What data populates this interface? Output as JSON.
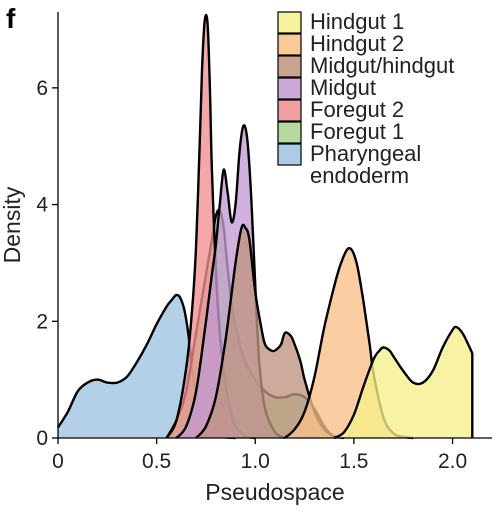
{
  "panel_label": "f",
  "chart_data": {
    "type": "area",
    "title": "",
    "xlabel": "Pseudospace",
    "ylabel": "Density",
    "xlim": [
      0,
      2.2
    ],
    "ylim": [
      0,
      7.3
    ],
    "x_ticks": [
      "0",
      "0.5",
      "1.0",
      "1.5",
      "2.0"
    ],
    "y_ticks": [
      "0",
      "2",
      "4",
      "6"
    ],
    "legend_position": "top-right",
    "series": [
      {
        "name": "Pharyngeal endoderm",
        "color": "#9ec3e0",
        "x": [
          0.0,
          0.05,
          0.1,
          0.15,
          0.2,
          0.25,
          0.3,
          0.35,
          0.4,
          0.45,
          0.5,
          0.55,
          0.58,
          0.6,
          0.62,
          0.64,
          0.66,
          0.68,
          0.7,
          0.72,
          0.75,
          0.8,
          0.85,
          0.9
        ],
        "y": [
          0.18,
          0.45,
          0.8,
          0.95,
          1.0,
          0.95,
          0.95,
          1.05,
          1.3,
          1.6,
          1.95,
          2.25,
          2.38,
          2.45,
          2.4,
          2.2,
          1.8,
          1.2,
          0.7,
          0.35,
          0.12,
          0.04,
          0.01,
          0.0
        ]
      },
      {
        "name": "Foregut 1",
        "color": "#a8d48a",
        "x": [
          0.55,
          0.6,
          0.65,
          0.7,
          0.75,
          0.78,
          0.8,
          0.82,
          0.84,
          0.86,
          0.88,
          0.9,
          0.95,
          1.0,
          1.05,
          1.1,
          1.15,
          1.2,
          1.25,
          1.3,
          1.35,
          1.4
        ],
        "y": [
          0.0,
          0.3,
          0.8,
          1.8,
          2.8,
          3.4,
          3.8,
          3.9,
          3.6,
          2.9,
          2.3,
          1.9,
          1.3,
          1.0,
          0.8,
          0.7,
          0.7,
          0.75,
          0.7,
          0.5,
          0.2,
          0.0
        ]
      },
      {
        "name": "Foregut 2",
        "color": "#ef8e91",
        "x": [
          0.55,
          0.6,
          0.65,
          0.68,
          0.7,
          0.72,
          0.73,
          0.74,
          0.75,
          0.76,
          0.77,
          0.78,
          0.8,
          0.82,
          0.85,
          0.88,
          0.9,
          0.95,
          1.0
        ],
        "y": [
          0.0,
          0.3,
          1.2,
          2.2,
          3.3,
          5.2,
          6.3,
          7.0,
          7.25,
          7.0,
          6.0,
          4.6,
          2.9,
          1.8,
          0.9,
          0.4,
          0.2,
          0.03,
          0.0
        ]
      },
      {
        "name": "Midgut",
        "color": "#c39ad2",
        "x": [
          0.6,
          0.65,
          0.7,
          0.75,
          0.78,
          0.8,
          0.82,
          0.84,
          0.86,
          0.88,
          0.9,
          0.92,
          0.94,
          0.96,
          0.98,
          1.0,
          1.02,
          1.05,
          1.1,
          1.15
        ],
        "y": [
          0.0,
          0.2,
          0.8,
          2.0,
          2.8,
          3.3,
          4.0,
          4.6,
          4.2,
          3.7,
          4.0,
          4.9,
          5.35,
          5.1,
          4.1,
          2.6,
          1.3,
          0.5,
          0.1,
          0.0
        ]
      },
      {
        "name": "Midgut/hindgut",
        "color": "#bf9480",
        "x": [
          0.7,
          0.75,
          0.8,
          0.85,
          0.9,
          0.93,
          0.95,
          0.97,
          1.0,
          1.03,
          1.05,
          1.08,
          1.1,
          1.13,
          1.15,
          1.18,
          1.2,
          1.23,
          1.25,
          1.3,
          1.35,
          1.4,
          1.45
        ],
        "y": [
          0.0,
          0.2,
          0.7,
          1.7,
          3.0,
          3.6,
          3.6,
          3.4,
          2.5,
          1.9,
          1.6,
          1.5,
          1.5,
          1.6,
          1.8,
          1.75,
          1.6,
          1.3,
          1.0,
          0.45,
          0.15,
          0.03,
          0.0
        ]
      },
      {
        "name": "Hindgut 2",
        "color": "#f8bf88",
        "x": [
          1.15,
          1.2,
          1.25,
          1.3,
          1.35,
          1.4,
          1.43,
          1.46,
          1.48,
          1.5,
          1.52,
          1.55,
          1.58,
          1.6,
          1.65,
          1.7,
          1.75,
          1.8
        ],
        "y": [
          0.0,
          0.15,
          0.45,
          1.05,
          1.9,
          2.6,
          2.95,
          3.2,
          3.25,
          3.15,
          2.9,
          2.3,
          1.6,
          1.1,
          0.35,
          0.08,
          0.02,
          0.0
        ]
      },
      {
        "name": "Hindgut 1",
        "color": "#f6f08a",
        "x": [
          1.4,
          1.45,
          1.5,
          1.55,
          1.6,
          1.63,
          1.65,
          1.68,
          1.7,
          1.75,
          1.8,
          1.85,
          1.9,
          1.95,
          2.0,
          2.02,
          2.05,
          2.08,
          2.1
        ],
        "y": [
          0.0,
          0.1,
          0.4,
          0.9,
          1.35,
          1.5,
          1.55,
          1.5,
          1.4,
          1.15,
          0.95,
          0.95,
          1.15,
          1.55,
          1.85,
          1.9,
          1.8,
          1.6,
          1.45
        ]
      }
    ],
    "legend": [
      "Hindgut 1",
      "Hindgut 2",
      "Midgut/hindgut",
      "Midgut",
      "Foregut 2",
      "Foregut 1",
      "Pharyngeal endoderm"
    ]
  }
}
